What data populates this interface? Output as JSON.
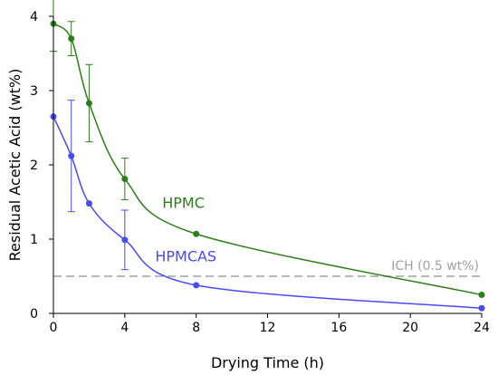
{
  "chart_data": {
    "type": "line",
    "xlabel": "Drying Time (h)",
    "ylabel": "Residual Acetic Acid (wt%)",
    "xlim": [
      0,
      24
    ],
    "ylim": [
      0,
      4
    ],
    "xticks": [
      0,
      4,
      8,
      12,
      16,
      20,
      24
    ],
    "yticks": [
      0,
      1,
      2,
      3,
      4
    ],
    "grid": false,
    "series": [
      {
        "name": "HPMC",
        "color": "#2e7d1a",
        "x": [
          0,
          1,
          2,
          4,
          8,
          24
        ],
        "y": [
          3.9,
          3.7,
          2.83,
          1.81,
          1.07,
          0.25
        ],
        "error": [
          0.37,
          0.23,
          0.52,
          0.28,
          0,
          0
        ]
      },
      {
        "name": "HPMCAS",
        "color": "#4a4af0",
        "x": [
          0,
          1,
          2,
          4,
          8,
          24
        ],
        "y": [
          2.65,
          2.12,
          1.48,
          0.99,
          0.38,
          0.07
        ],
        "error": [
          0,
          0.75,
          0,
          0.4,
          0,
          0
        ]
      }
    ],
    "reference_line": {
      "label": "ICH (0.5 wt%)",
      "y": 0.5,
      "color": "#a0a0a0",
      "style": "dashed"
    }
  }
}
